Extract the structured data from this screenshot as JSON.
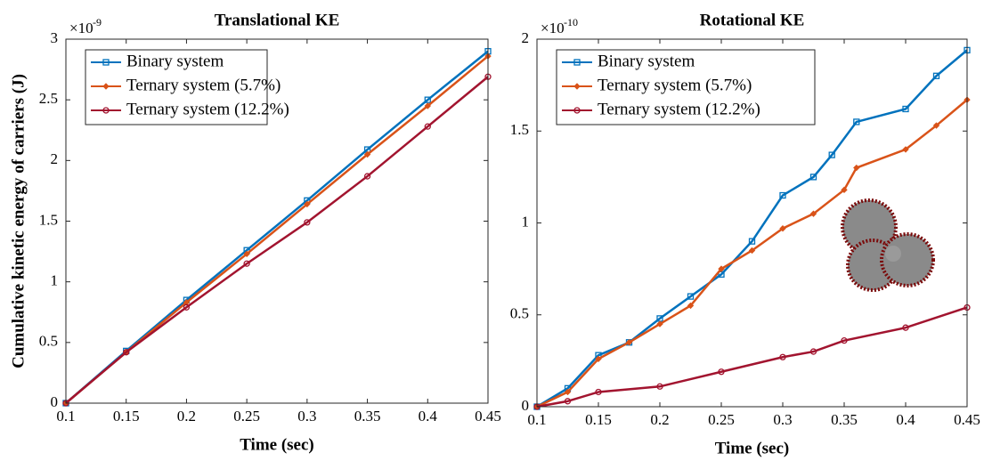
{
  "chart_data": [
    {
      "type": "line",
      "title": "Translational KE",
      "x_label": "Time (sec)",
      "y_label": "Cumulative kinetic energy of carriers (J)",
      "y_multiplier": "×10",
      "y_exponent": "-9",
      "xlim": [
        0.1,
        0.45
      ],
      "xticks": [
        0.1,
        0.15,
        0.2,
        0.25,
        0.3,
        0.35,
        0.4,
        0.45
      ],
      "ylim": [
        0,
        3
      ],
      "yticks": [
        0,
        0.5,
        1,
        1.5,
        2,
        2.5,
        3
      ],
      "legend": "upper left",
      "series": [
        {
          "name": "Binary system",
          "color": "#0072BD",
          "marker": "square",
          "x": [
            0.1,
            0.15,
            0.2,
            0.25,
            0.3,
            0.35,
            0.4,
            0.45
          ],
          "values": [
            0,
            0.43,
            0.85,
            1.26,
            1.67,
            2.09,
            2.5,
            2.9
          ]
        },
        {
          "name": "Ternary system (5.7%)",
          "color": "#D95319",
          "marker": "diamond",
          "x": [
            0.1,
            0.15,
            0.2,
            0.25,
            0.3,
            0.35,
            0.4,
            0.45
          ],
          "values": [
            0,
            0.42,
            0.83,
            1.23,
            1.64,
            2.05,
            2.45,
            2.86
          ]
        },
        {
          "name": "Ternary system (12.2%)",
          "color": "#A2142F",
          "marker": "circle",
          "x": [
            0.1,
            0.15,
            0.2,
            0.25,
            0.3,
            0.35,
            0.4,
            0.45
          ],
          "values": [
            0,
            0.42,
            0.79,
            1.15,
            1.49,
            1.87,
            2.28,
            2.69
          ]
        }
      ]
    },
    {
      "type": "line",
      "title": "Rotational KE",
      "x_label": "Time (sec)",
      "y_multiplier": "×10",
      "y_exponent": "-10",
      "xlim": [
        0.1,
        0.45
      ],
      "xticks": [
        0.1,
        0.15,
        0.2,
        0.25,
        0.3,
        0.35,
        0.4,
        0.45
      ],
      "ylim": [
        0,
        2
      ],
      "yticks": [
        0,
        0.5,
        1,
        1.5,
        2
      ],
      "legend": "upper left",
      "series": [
        {
          "name": "Binary system",
          "color": "#0072BD",
          "marker": "square",
          "x": [
            0.1,
            0.125,
            0.15,
            0.175,
            0.2,
            0.225,
            0.25,
            0.275,
            0.3,
            0.325,
            0.34,
            0.36,
            0.4,
            0.425,
            0.45
          ],
          "values": [
            0,
            0.1,
            0.28,
            0.35,
            0.48,
            0.6,
            0.72,
            0.9,
            1.15,
            1.25,
            1.37,
            1.55,
            1.62,
            1.8,
            1.94
          ]
        },
        {
          "name": "Ternary system (5.7%)",
          "color": "#D95319",
          "marker": "diamond",
          "x": [
            0.1,
            0.125,
            0.15,
            0.175,
            0.2,
            0.225,
            0.25,
            0.275,
            0.3,
            0.325,
            0.35,
            0.36,
            0.4,
            0.425,
            0.45
          ],
          "values": [
            0,
            0.08,
            0.26,
            0.35,
            0.45,
            0.55,
            0.75,
            0.85,
            0.97,
            1.05,
            1.18,
            1.3,
            1.4,
            1.53,
            1.67
          ]
        },
        {
          "name": "Ternary system (12.2%)",
          "color": "#A2142F",
          "marker": "circle",
          "x": [
            0.1,
            0.125,
            0.15,
            0.2,
            0.25,
            0.3,
            0.325,
            0.35,
            0.4,
            0.45
          ],
          "values": [
            0,
            0.03,
            0.08,
            0.11,
            0.19,
            0.27,
            0.3,
            0.36,
            0.43,
            0.54
          ]
        }
      ]
    }
  ]
}
